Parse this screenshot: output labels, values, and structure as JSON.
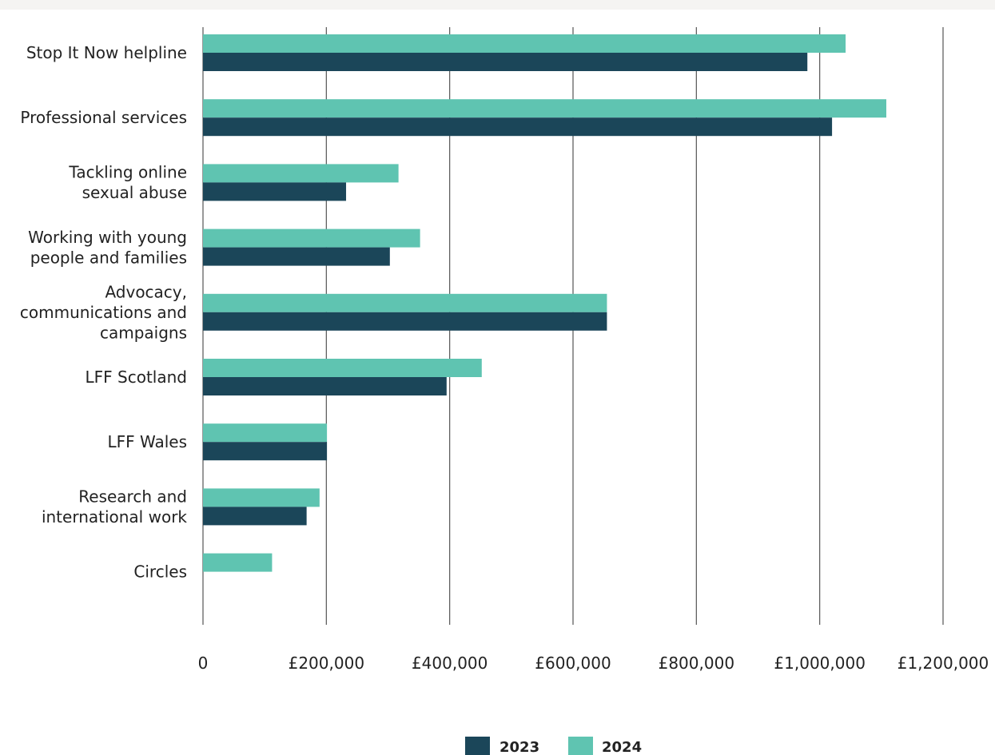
{
  "colors": {
    "background": "#ffffff",
    "top_band": "#f5f4f2",
    "grid": "#555555",
    "series_2023": "#1b4659",
    "series_2024": "#5fc4b1",
    "text": "#222222"
  },
  "chart_data": {
    "type": "bar",
    "orientation": "horizontal",
    "title": "",
    "xlabel": "",
    "ylabel": "",
    "xlim": [
      0,
      1200000
    ],
    "x_ticks": [
      0,
      200000,
      400000,
      600000,
      800000,
      1000000,
      1200000
    ],
    "x_tick_labels": [
      "0",
      "£200,000",
      "£400,000",
      "£600,000",
      "£800,000",
      "£1,000,000",
      "£1,200,000"
    ],
    "grid": "vertical",
    "legend_position": "bottom-center",
    "categories": [
      [
        "Stop It Now helpline"
      ],
      [
        "Professional services"
      ],
      [
        "Tackling online",
        "sexual abuse"
      ],
      [
        "Working with young",
        "people and families"
      ],
      [
        "Advocacy,",
        "communications and",
        "campaigns"
      ],
      [
        "LFF Scotland"
      ],
      [
        "LFF Wales"
      ],
      [
        "Research and",
        "international work"
      ],
      [
        "Circles"
      ]
    ],
    "series": [
      {
        "name": "2023",
        "color": "#1b4659",
        "values": [
          980000,
          1020000,
          232000,
          303000,
          655000,
          395000,
          201000,
          168000,
          0
        ]
      },
      {
        "name": "2024",
        "color": "#5fc4b1",
        "values": [
          1042000,
          1108000,
          317000,
          352000,
          655000,
          452000,
          201000,
          189000,
          112000
        ]
      }
    ]
  }
}
